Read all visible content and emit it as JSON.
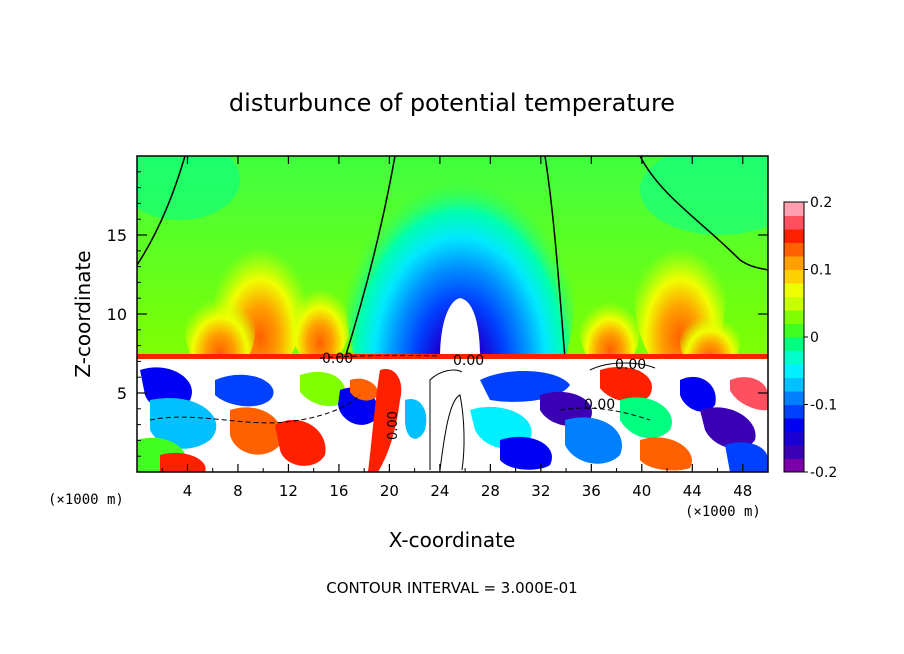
{
  "chart_data": {
    "type": "heatmap",
    "title": "disturbunce of potential temperature",
    "xlabel": "X-coordinate",
    "ylabel": "Z-coordinate",
    "x_unit": "(×1000 m)",
    "z_unit": "(×1000 m)",
    "xlim": [
      0,
      50
    ],
    "ylim": [
      0,
      20
    ],
    "x_ticks": [
      "4",
      "8",
      "12",
      "16",
      "20",
      "24",
      "28",
      "32",
      "36",
      "40",
      "44",
      "48"
    ],
    "y_ticks": [
      "5",
      "10",
      "15"
    ],
    "colorbar": {
      "range": [
        -0.2,
        0.2
      ],
      "tick_labels": [
        "0.2",
        "0.1",
        "0",
        "-0.1",
        "-0.2"
      ],
      "tick_values": [
        0.2,
        0.1,
        0,
        -0.1,
        -0.2
      ],
      "colors": [
        "#7b00a8",
        "#3c00b4",
        "#1a00d2",
        "#0000f5",
        "#0040ff",
        "#0080ff",
        "#00c0ff",
        "#00f0ff",
        "#00ffc8",
        "#00ff80",
        "#40ff20",
        "#80ff00",
        "#c8ff00",
        "#f0ff00",
        "#ffd000",
        "#ffa000",
        "#ff6000",
        "#ff2000",
        "#ff5060",
        "#ffa0b0"
      ]
    },
    "contour_labels": [
      "0.00",
      "0.00",
      "0.00",
      "0.00",
      "0.00"
    ],
    "contour_interval_text": "CONTOUR INTERVAL = 3.000E-01",
    "grid": false,
    "regions": [
      {
        "x": [
          0,
          50
        ],
        "z": [
          7.5,
          20
        ],
        "description_value": 0.02
      },
      {
        "x": [
          22,
          30
        ],
        "z": [
          8,
          20
        ],
        "min_value": -0.2
      },
      {
        "x": [
          0,
          50
        ],
        "z": [
          0,
          7.5
        ],
        "pattern": "turbulent"
      }
    ]
  }
}
